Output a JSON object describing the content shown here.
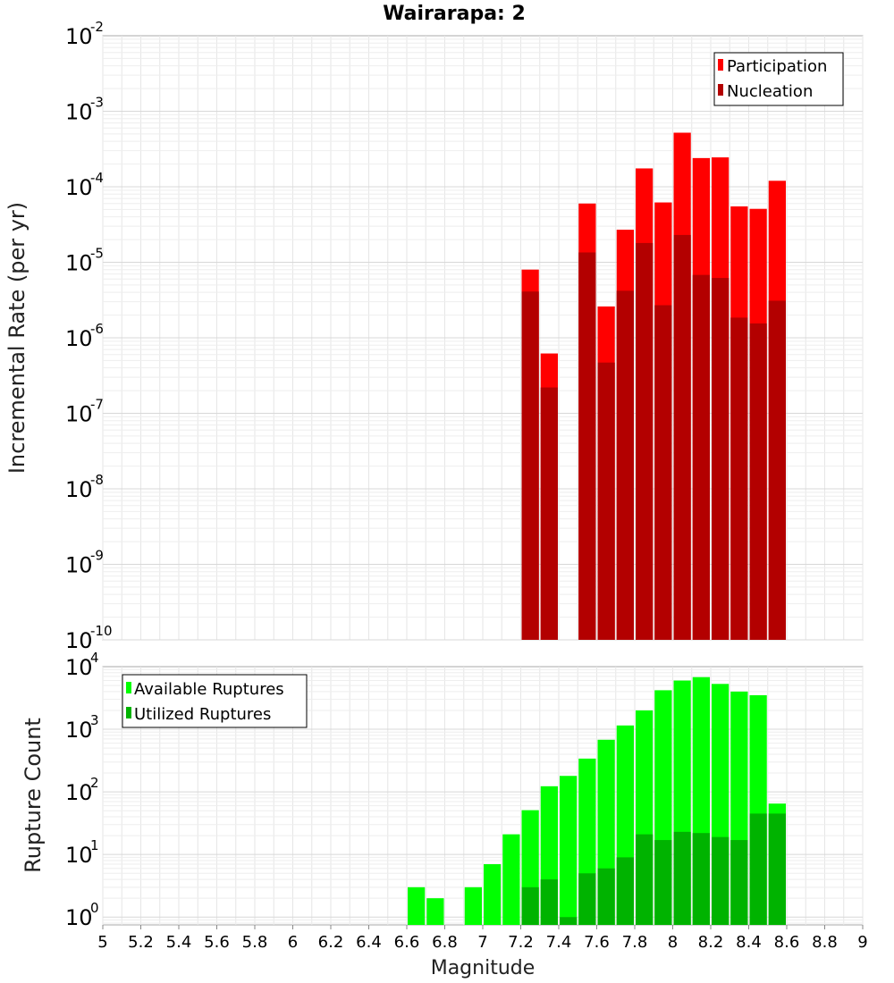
{
  "chart_data": [
    {
      "type": "bar",
      "title": "Wairarapa: 2",
      "xlabel": "",
      "ylabel": "Incremental Rate (per yr)",
      "yscale": "log",
      "ylim": [
        1e-10,
        0.01
      ],
      "xlim": [
        5,
        9
      ],
      "y_ticks": [
        {
          "base": "10",
          "exp": "-10"
        },
        {
          "base": "10",
          "exp": "-9"
        },
        {
          "base": "10",
          "exp": "-8"
        },
        {
          "base": "10",
          "exp": "-7"
        },
        {
          "base": "10",
          "exp": "-6"
        },
        {
          "base": "10",
          "exp": "-5"
        },
        {
          "base": "10",
          "exp": "-4"
        },
        {
          "base": "10",
          "exp": "-3"
        },
        {
          "base": "10",
          "exp": "-2"
        }
      ],
      "legend_position": "top-right",
      "grid": true,
      "x": [
        7.25,
        7.35,
        7.45,
        7.55,
        7.65,
        7.75,
        7.85,
        7.95,
        8.05,
        8.15,
        8.25,
        8.35,
        8.45,
        8.55
      ],
      "series": [
        {
          "name": "Participation",
          "color": "#ff0000",
          "values": [
            8e-06,
            6.2e-07,
            null,
            6e-05,
            2.6e-06,
            2.7e-05,
            0.000175,
            6.2e-05,
            0.00052,
            0.00024,
            0.000245,
            5.5e-05,
            5.1e-05,
            0.00012
          ]
        },
        {
          "name": "Nucleation",
          "color": "#b30000",
          "values": [
            4.1e-06,
            2.2e-07,
            null,
            1.35e-05,
            4.7e-07,
            4.2e-06,
            1.8e-05,
            2.7e-06,
            2.3e-05,
            6.8e-06,
            6.2e-06,
            1.85e-06,
            1.55e-06,
            3.1e-06
          ]
        }
      ]
    },
    {
      "type": "bar",
      "xlabel": "Magnitude",
      "ylabel": "Rupture Count",
      "yscale": "log",
      "ylim": [
        0.75,
        10000
      ],
      "xlim": [
        5,
        9
      ],
      "y_ticks": [
        {
          "base": "10",
          "exp": "0"
        },
        {
          "base": "10",
          "exp": "1"
        },
        {
          "base": "10",
          "exp": "2"
        },
        {
          "base": "10",
          "exp": "3"
        },
        {
          "base": "10",
          "exp": "4"
        }
      ],
      "x_ticks": [
        "5",
        "5.2",
        "5.4",
        "5.6",
        "5.8",
        "6",
        "6.2",
        "6.4",
        "6.6",
        "6.8",
        "7",
        "7.2",
        "7.4",
        "7.6",
        "7.8",
        "8",
        "8.2",
        "8.4",
        "8.6",
        "8.8",
        "9"
      ],
      "legend_position": "top-left",
      "grid": true,
      "x": [
        6.65,
        6.75,
        6.85,
        6.95,
        7.05,
        7.15,
        7.25,
        7.35,
        7.45,
        7.55,
        7.65,
        7.75,
        7.85,
        7.95,
        8.05,
        8.15,
        8.25,
        8.35,
        8.45,
        8.55
      ],
      "series": [
        {
          "name": "Available Ruptures",
          "color": "#00ff00",
          "values": [
            3,
            2,
            null,
            3,
            7,
            21,
            51,
            123,
            180,
            340,
            680,
            1150,
            2000,
            4200,
            6000,
            6800,
            5300,
            4000,
            3500,
            65
          ]
        },
        {
          "name": "Utilized Ruptures",
          "color": "#00b300",
          "values": [
            null,
            null,
            null,
            null,
            null,
            null,
            3,
            4,
            1,
            5,
            6,
            9,
            21,
            17,
            23,
            22,
            19,
            17,
            45,
            45
          ]
        }
      ]
    }
  ]
}
